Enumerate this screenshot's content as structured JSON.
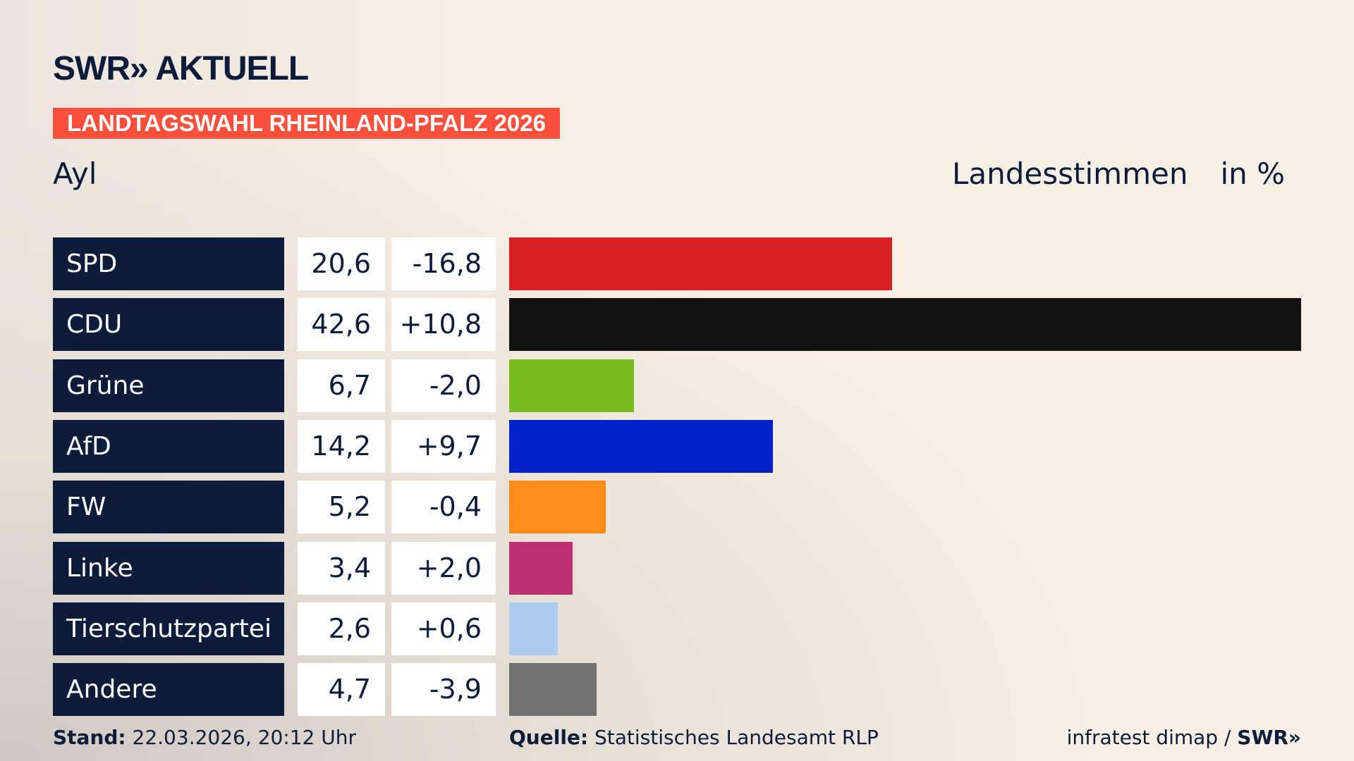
{
  "header": {
    "logo": "SWR» AKTUELL",
    "banner": "LANDTAGSWAHL RHEINLAND-PFALZ 2026",
    "place": "Ayl",
    "measure": "Landesstimmen",
    "unit": "in %"
  },
  "chart_data": {
    "type": "bar",
    "orientation": "horizontal",
    "categories": [
      "SPD",
      "CDU",
      "Grüne",
      "AfD",
      "FW",
      "Linke",
      "Tierschutzpartei",
      "Andere"
    ],
    "values": [
      20.6,
      42.6,
      6.7,
      14.2,
      5.2,
      3.4,
      2.6,
      4.7
    ],
    "value_labels": [
      "20,6",
      "42,6",
      "6,7",
      "14,2",
      "5,2",
      "3,4",
      "2,6",
      "4,7"
    ],
    "diff_labels": [
      "-16,8",
      "+10,8",
      "-2,0",
      "+9,7",
      "-0,4",
      "+2,0",
      "+0,6",
      "-3,9"
    ],
    "colors": [
      "#d91f20",
      "#121212",
      "#78bd1d",
      "#0021c7",
      "#fd8c18",
      "#bd3075",
      "#aecbf0",
      "#727272"
    ],
    "xlim": [
      0,
      42.6
    ]
  },
  "footer": {
    "stand_label": "Stand:",
    "stand": "22.03.2026, 20:12 Uhr",
    "source_label": "Quelle:",
    "source": "Statistisches Landesamt RLP",
    "credit": "infratest dimap / ",
    "credit_logo": "SWR»"
  }
}
